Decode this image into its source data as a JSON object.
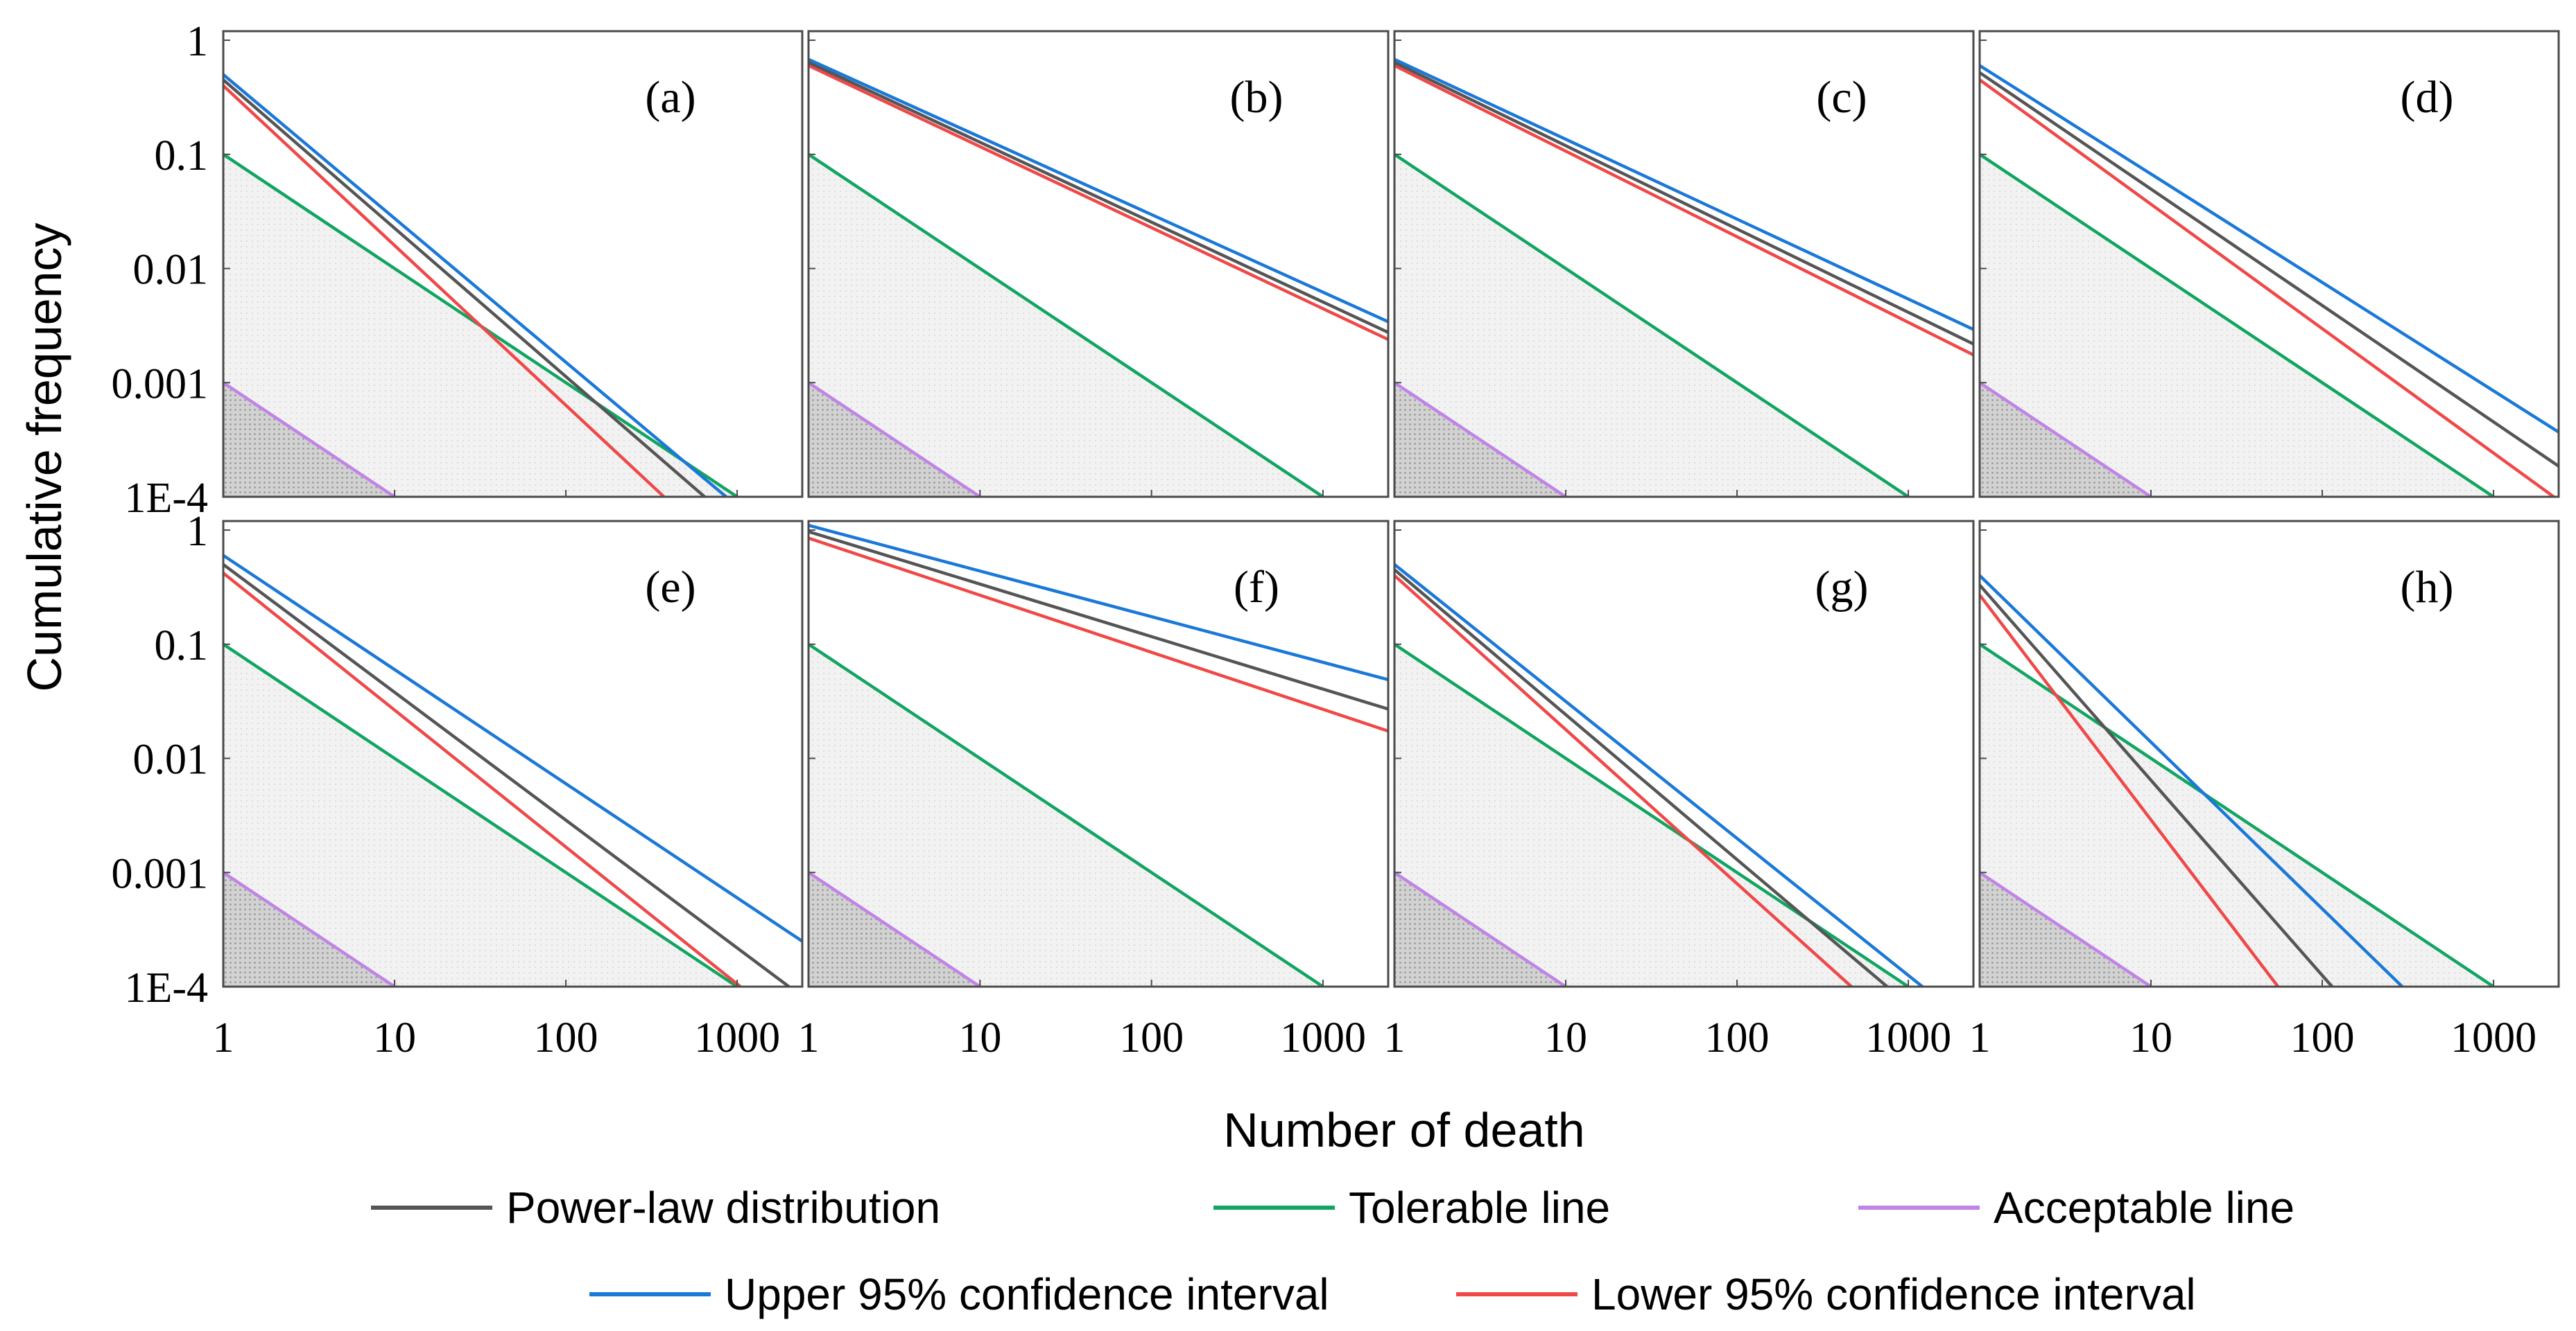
{
  "chart_data": {
    "type": "line",
    "xscale": "log",
    "yscale": "log",
    "xlim": [
      1,
      2400
    ],
    "ylim": [
      0.0001,
      1.2
    ],
    "ylabel": "Cumulative frequency",
    "xlabel": "Number of death",
    "x_ticks": [
      {
        "value": 1,
        "label": "1"
      },
      {
        "value": 10,
        "label": "10"
      },
      {
        "value": 100,
        "label": "100"
      },
      {
        "value": 1000,
        "label": "1000"
      }
    ],
    "y_ticks": [
      {
        "value": 1,
        "label": "1"
      },
      {
        "value": 0.1,
        "label": "0.1"
      },
      {
        "value": 0.01,
        "label": "0.01"
      },
      {
        "value": 0.001,
        "label": "0.001"
      },
      {
        "value": 0.0001,
        "label": "1E-4"
      }
    ],
    "legend": [
      {
        "key": "power",
        "label": "Power-law distribution",
        "color": "#555555"
      },
      {
        "key": "tolerable",
        "label": "Tolerable line",
        "color": "#10a560"
      },
      {
        "key": "acceptable",
        "label": "Acceptable line",
        "color": "#c084e8"
      },
      {
        "key": "upper",
        "label": "Upper 95% confidence interval",
        "color": "#1a78d8"
      },
      {
        "key": "lower",
        "label": "Lower 95% confidence interval",
        "color": "#f04848"
      }
    ],
    "reference_lines": {
      "tolerable": {
        "y_at_1": 0.1,
        "slope": -1
      },
      "acceptable": {
        "y_at_1": 0.001,
        "slope": -1
      }
    },
    "panels": [
      {
        "label": "(a)",
        "series": {
          "upper": {
            "y_at_1": 0.5,
            "slope": -1.26
          },
          "power": {
            "y_at_1": 0.45,
            "slope": -1.3
          },
          "lower": {
            "y_at_1": 0.4,
            "slope": -1.4
          }
        }
      },
      {
        "label": "(b)",
        "series": {
          "upper": {
            "y_at_1": 0.68,
            "slope": -0.68
          },
          "power": {
            "y_at_1": 0.64,
            "slope": -0.7
          },
          "lower": {
            "y_at_1": 0.6,
            "slope": -0.71
          }
        }
      },
      {
        "label": "(c)",
        "series": {
          "upper": {
            "y_at_1": 0.68,
            "slope": -0.7
          },
          "power": {
            "y_at_1": 0.64,
            "slope": -0.73
          },
          "lower": {
            "y_at_1": 0.6,
            "slope": -0.75
          }
        }
      },
      {
        "label": "(d)",
        "series": {
          "upper": {
            "y_at_1": 0.6,
            "slope": -0.95
          },
          "power": {
            "y_at_1": 0.52,
            "slope": -1.02
          },
          "lower": {
            "y_at_1": 0.45,
            "slope": -1.09
          }
        }
      },
      {
        "label": "(e)",
        "series": {
          "upper": {
            "y_at_1": 0.6,
            "slope": -1.0
          },
          "power": {
            "y_at_1": 0.5,
            "slope": -1.12
          },
          "lower": {
            "y_at_1": 0.42,
            "slope": -1.2
          }
        }
      },
      {
        "label": "(f)",
        "series": {
          "upper": {
            "y_at_1": 1.1,
            "slope": -0.4
          },
          "power": {
            "y_at_1": 0.97,
            "slope": -0.46
          },
          "lower": {
            "y_at_1": 0.85,
            "slope": -0.5
          }
        }
      },
      {
        "label": "(g)",
        "series": {
          "upper": {
            "y_at_1": 0.5,
            "slope": -1.2
          },
          "power": {
            "y_at_1": 0.45,
            "slope": -1.27
          },
          "lower": {
            "y_at_1": 0.4,
            "slope": -1.35
          }
        }
      },
      {
        "label": "(h)",
        "series": {
          "upper": {
            "y_at_1": 0.4,
            "slope": -1.46
          },
          "power": {
            "y_at_1": 0.33,
            "slope": -1.71
          },
          "lower": {
            "y_at_1": 0.27,
            "slope": -1.97
          }
        }
      }
    ]
  }
}
